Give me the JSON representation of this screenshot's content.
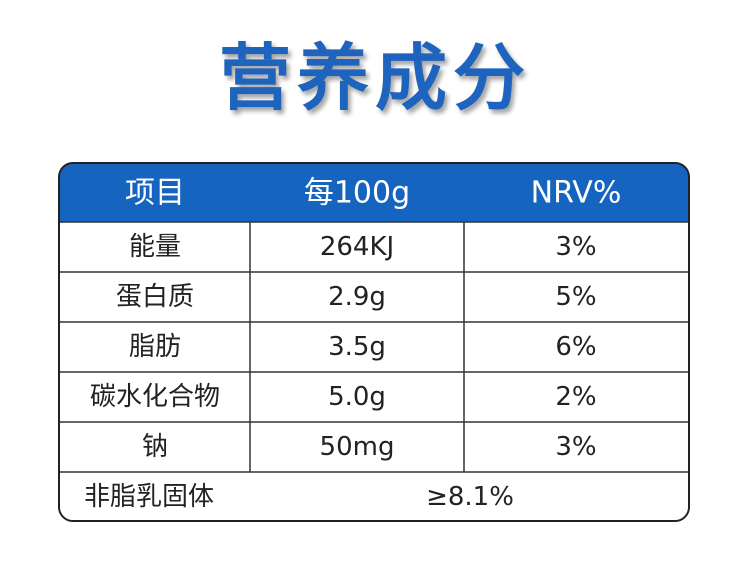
{
  "title": "营养成分",
  "table": {
    "header": [
      "项目",
      "每100g",
      "NRV%"
    ],
    "rows": [
      [
        "能量",
        "264KJ",
        "3%"
      ],
      [
        "蛋白质",
        "2.9g",
        "5%"
      ],
      [
        "脂肪",
        "3.5g",
        "6%"
      ],
      [
        "碳水化合物",
        "5.0g",
        "2%"
      ],
      [
        "钠",
        "50mg",
        "3%"
      ]
    ],
    "footer": [
      "非脂乳固体",
      "≥8.1%"
    ]
  }
}
